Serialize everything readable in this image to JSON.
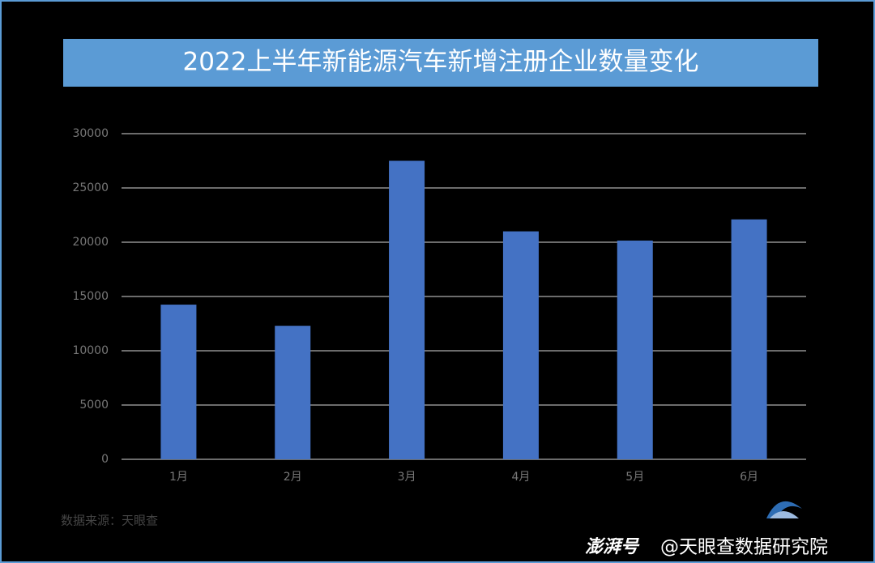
{
  "chart_data": {
    "type": "bar",
    "title": "2022上半年新能源汽车新增注册企业数量变化",
    "categories": [
      "1月",
      "2月",
      "3月",
      "4月",
      "5月",
      "6月"
    ],
    "values": [
      14250,
      12300,
      27500,
      21000,
      20150,
      22100
    ],
    "color": "#4472c4",
    "ylim": [
      0,
      30000
    ],
    "yticks": [
      0,
      5000,
      10000,
      15000,
      20000,
      25000,
      30000
    ],
    "grid": true,
    "source": "数据来源：天眼查"
  },
  "watermark": {
    "platform": "澎湃号",
    "account": "@天眼查数据研究院"
  }
}
